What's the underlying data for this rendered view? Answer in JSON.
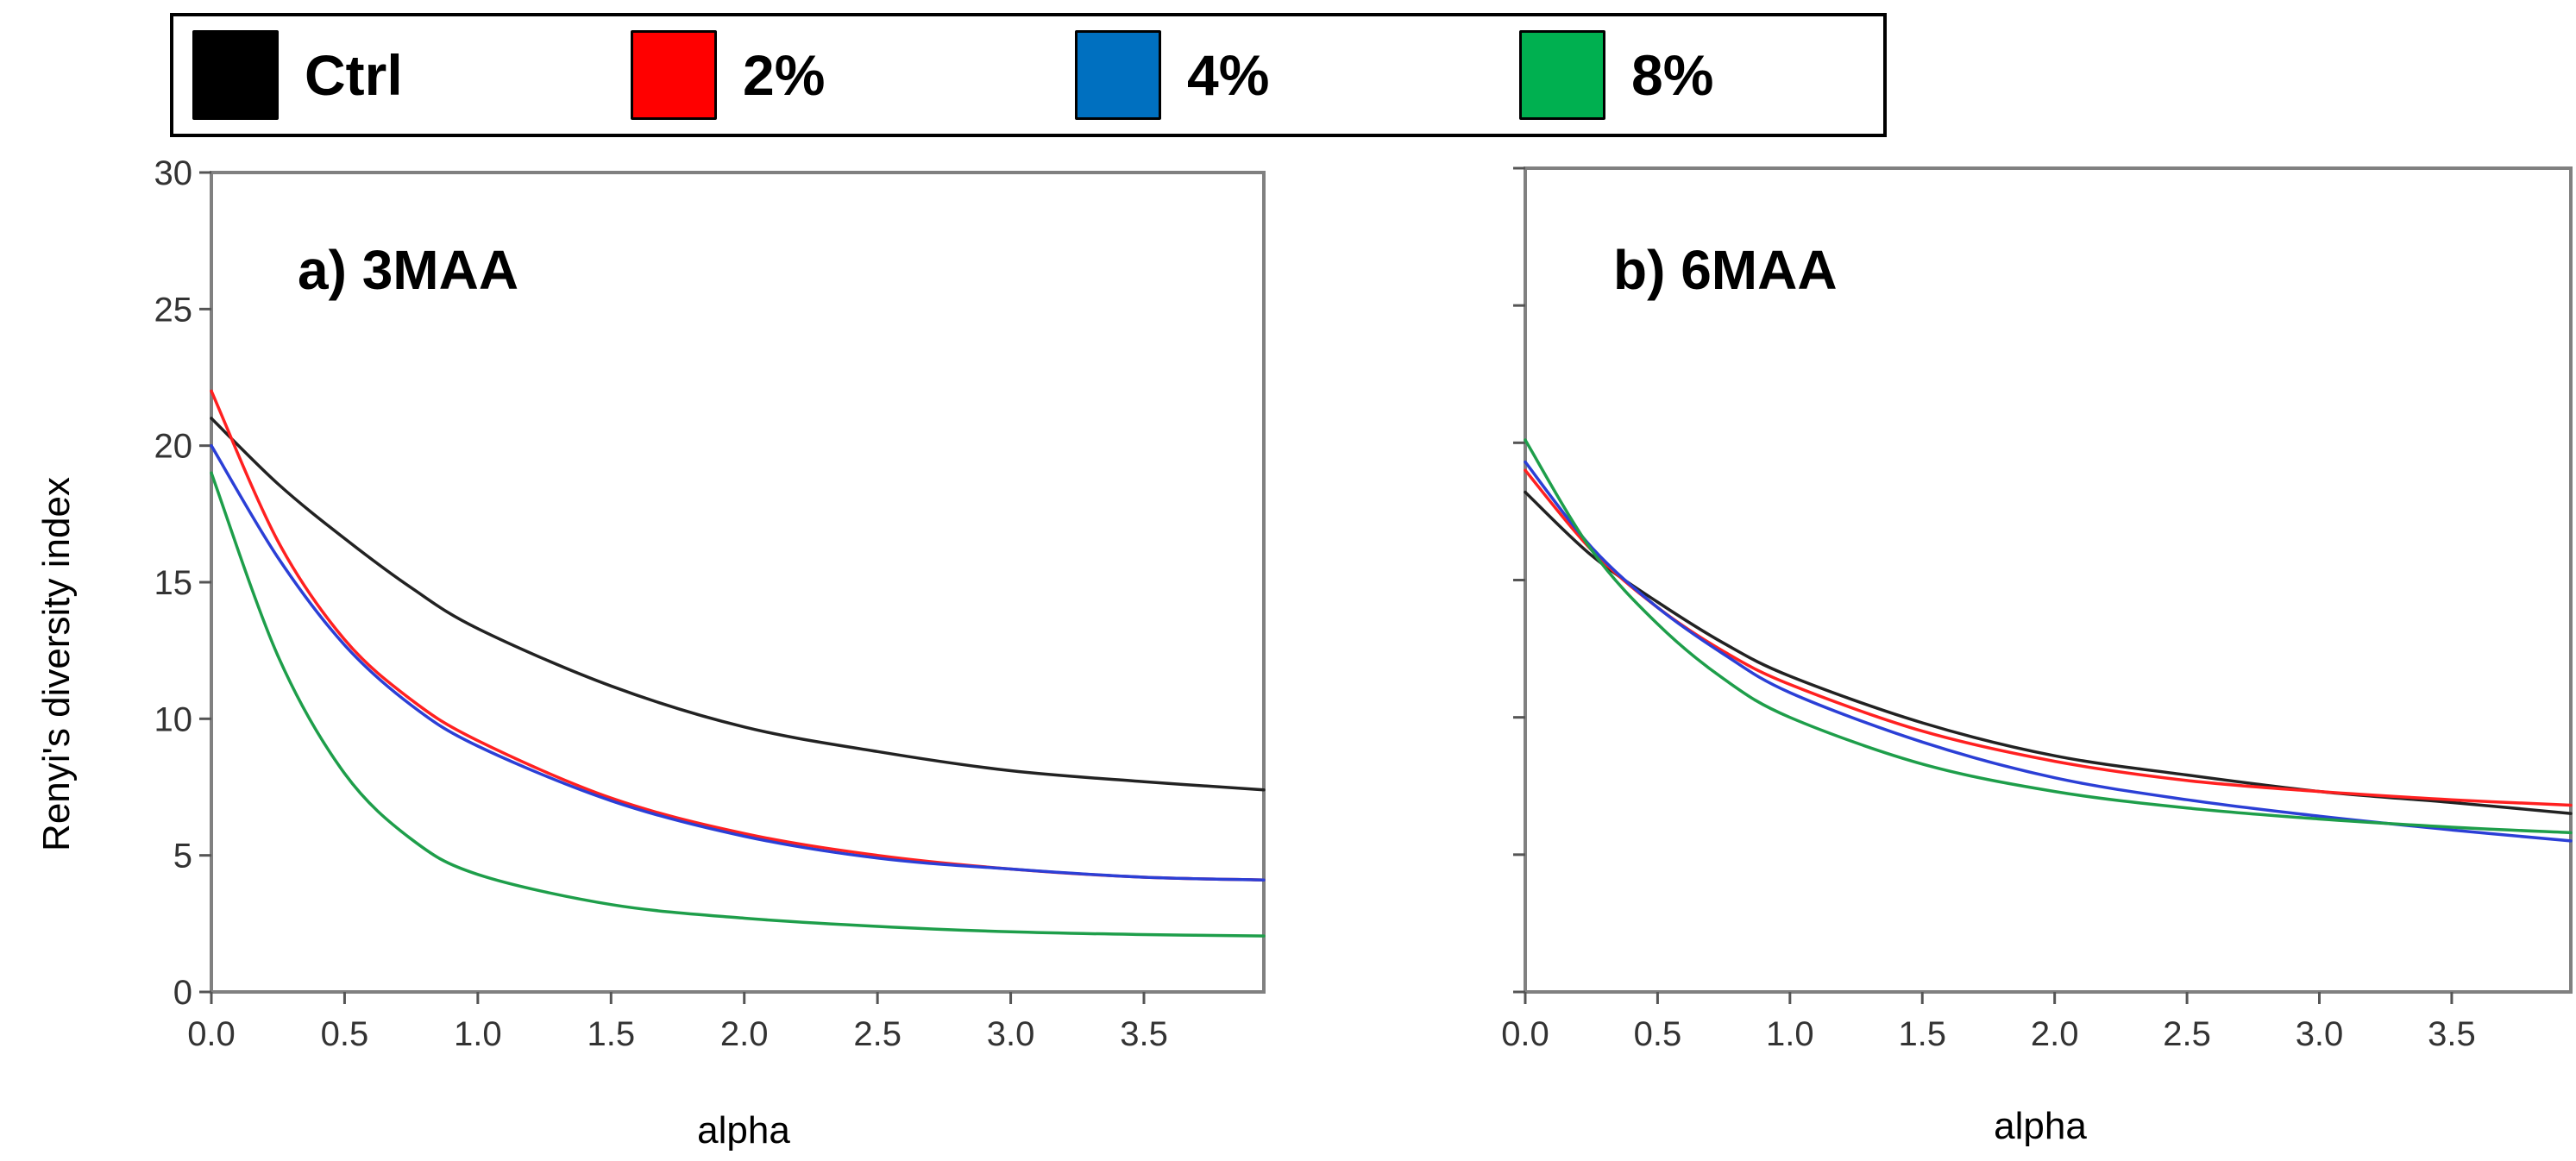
{
  "legend": {
    "items": [
      {
        "label": "Ctrl",
        "color": "#000000"
      },
      {
        "label": "2%",
        "color": "#ff0000"
      },
      {
        "label": "4%",
        "color": "#0070c0"
      },
      {
        "label": "8%",
        "color": "#00b050"
      }
    ]
  },
  "chart_data": [
    {
      "type": "line",
      "title": "a) 3MAA",
      "xlabel": "alpha",
      "ylabel": "Renyi's diversity index",
      "xlim": [
        0,
        3.95
      ],
      "ylim": [
        0,
        30
      ],
      "xticks": [
        "0.0",
        "0.5",
        "1.0",
        "1.5",
        "2.0",
        "2.5",
        "3.0",
        "3.5"
      ],
      "yticks": [
        "0",
        "5",
        "10",
        "15",
        "20",
        "25",
        "30"
      ],
      "x": [
        0,
        0.25,
        0.5,
        0.75,
        1.0,
        1.5,
        2.0,
        2.5,
        3.0,
        3.5,
        3.95
      ],
      "series": [
        {
          "name": "Ctrl",
          "color": "#222222",
          "values": [
            21.0,
            18.6,
            16.6,
            14.8,
            13.3,
            11.2,
            9.7,
            8.8,
            8.1,
            7.7,
            7.4
          ]
        },
        {
          "name": "2%",
          "color": "#ff2020",
          "values": [
            22.0,
            16.5,
            12.9,
            10.7,
            9.2,
            7.1,
            5.8,
            5.0,
            4.5,
            4.2,
            4.1
          ]
        },
        {
          "name": "4%",
          "color": "#2b3fd6",
          "values": [
            20.0,
            15.9,
            12.7,
            10.5,
            9.0,
            7.0,
            5.7,
            4.9,
            4.5,
            4.2,
            4.1
          ]
        },
        {
          "name": "8%",
          "color": "#1e9e4a",
          "values": [
            19.0,
            12.3,
            8.0,
            5.6,
            4.3,
            3.2,
            2.7,
            2.4,
            2.2,
            2.1,
            2.05
          ]
        }
      ]
    },
    {
      "type": "line",
      "title": "b) 6MAA",
      "xlabel": "alpha",
      "ylabel": "",
      "xlim": [
        0,
        3.95
      ],
      "ylim": [
        0,
        30
      ],
      "xticks": [
        "0.0",
        "0.5",
        "1.0",
        "1.5",
        "2.0",
        "2.5",
        "3.0",
        "3.5"
      ],
      "yticks": [
        "",
        "",
        "",
        "",
        "",
        "",
        ""
      ],
      "x": [
        0,
        0.25,
        0.5,
        0.75,
        1.0,
        1.5,
        2.0,
        2.5,
        3.0,
        3.5,
        3.95
      ],
      "series": [
        {
          "name": "Ctrl",
          "color": "#222222",
          "values": [
            18.2,
            15.9,
            14.2,
            12.7,
            11.5,
            9.8,
            8.6,
            7.9,
            7.3,
            6.9,
            6.5
          ]
        },
        {
          "name": "2%",
          "color": "#ff2020",
          "values": [
            19.0,
            16.1,
            14.0,
            12.4,
            11.2,
            9.5,
            8.4,
            7.7,
            7.3,
            7.0,
            6.8
          ]
        },
        {
          "name": "4%",
          "color": "#2b3fd6",
          "values": [
            19.3,
            16.2,
            14.0,
            12.3,
            10.9,
            9.1,
            7.8,
            7.0,
            6.4,
            5.9,
            5.5
          ]
        },
        {
          "name": "8%",
          "color": "#1e9e4a",
          "values": [
            20.1,
            16.1,
            13.4,
            11.4,
            10.0,
            8.3,
            7.3,
            6.7,
            6.3,
            6.0,
            5.8
          ]
        }
      ]
    }
  ]
}
